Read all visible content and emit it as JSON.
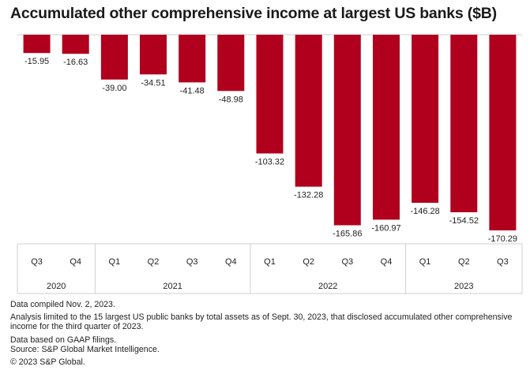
{
  "chart_data": {
    "type": "bar",
    "title": "Accumulated other comprehensive income at largest US banks ($B)",
    "categories": [
      "Q3",
      "Q4",
      "Q1",
      "Q2",
      "Q3",
      "Q4",
      "Q1",
      "Q2",
      "Q3",
      "Q4",
      "Q1",
      "Q2",
      "Q3"
    ],
    "years": [
      {
        "label": "2020",
        "count": 2
      },
      {
        "label": "2021",
        "count": 4
      },
      {
        "label": "2022",
        "count": 4
      },
      {
        "label": "2023",
        "count": 3
      }
    ],
    "values": [
      -15.95,
      -16.63,
      -39.0,
      -34.51,
      -41.48,
      -48.98,
      -103.32,
      -132.28,
      -165.86,
      -160.97,
      -146.28,
      -154.52,
      -170.29
    ],
    "value_labels": [
      "-15.95",
      "-16.63",
      "-39.00",
      "-34.51",
      "-41.48",
      "-48.98",
      "-103.32",
      "-132.28",
      "-165.86",
      "-160.97",
      "-146.28",
      "-154.52",
      "-170.29"
    ],
    "ylim": [
      -170.29,
      0
    ],
    "bar_color": "#b0001e",
    "grid": false,
    "legend": "none"
  },
  "footnotes": [
    "Data compiled Nov. 2, 2023.",
    "Analysis limited to the 15 largest US public banks by total assets as of Sept. 30, 2023, that disclosed accumulated other comprehensive income for the third quarter of 2023.",
    "Data based on GAAP filings.",
    "Source: S&P Global Market Intelligence.",
    "© 2023 S&P Global."
  ]
}
